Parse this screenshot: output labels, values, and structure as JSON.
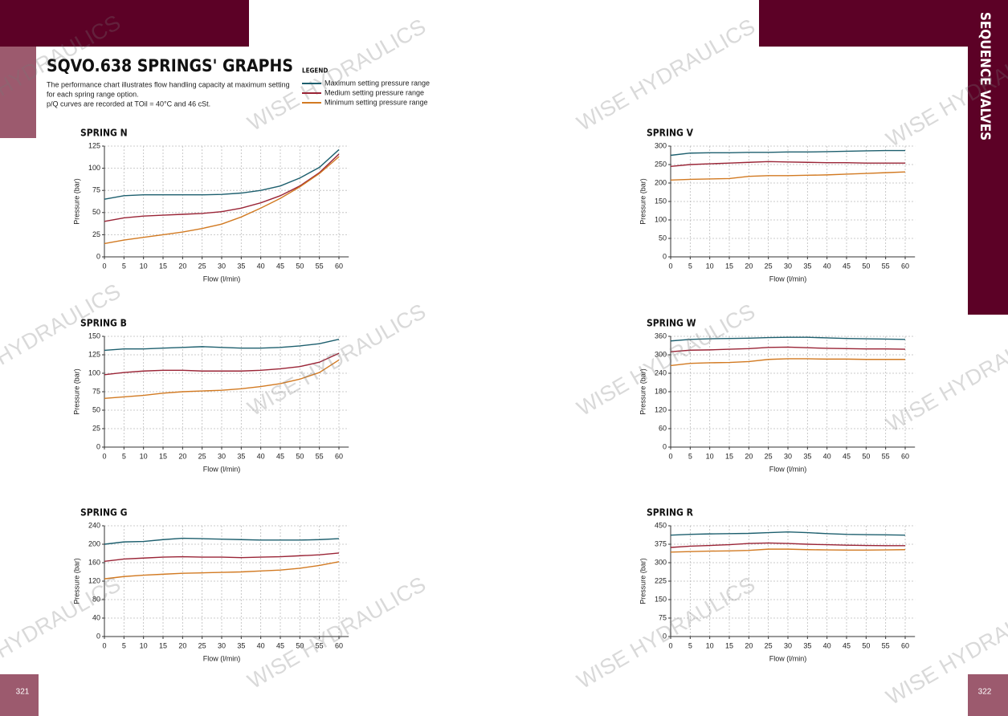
{
  "header": {
    "title": "SQVO.638 SPRINGS' GRAPHS",
    "description": [
      "The performance chart illustrates flow handling capacity at maximum setting",
      "for each spring range option.",
      "p/Q curves are recorded at TOil = 40°C and 46 cSt."
    ],
    "section": "SEQUENCE VALVES"
  },
  "legend": {
    "title": "LEGEND",
    "items": [
      {
        "label": "Maximum setting pressure range",
        "color": "#1d5f6e"
      },
      {
        "label": "Medium setting pressure range",
        "color": "#9a2436"
      },
      {
        "label": "Minimum setting pressure range",
        "color": "#d27a22"
      }
    ]
  },
  "watermark": "WISE HYDRAULICS",
  "page_numbers": [
    "321",
    "322"
  ],
  "chart_data": [
    {
      "type": "line",
      "title": "SPRING N",
      "x_label": "Flow (l/min)",
      "y_label": "Pressure (bar)",
      "grid": true,
      "x": [
        0,
        5,
        10,
        15,
        20,
        25,
        30,
        35,
        40,
        45,
        50,
        55,
        60
      ],
      "xlim": [
        0,
        62.5
      ],
      "xticks": [
        0,
        5,
        10,
        15,
        20,
        25,
        30,
        35,
        40,
        45,
        50,
        55,
        60
      ],
      "ylim": [
        0,
        125
      ],
      "yticks": [
        0,
        25,
        50,
        75,
        100,
        125
      ],
      "series": [
        {
          "color": "#1d5f6e",
          "values": [
            65,
            69,
            70,
            70,
            70,
            70,
            70.5,
            72,
            75,
            80,
            89,
            101,
            121
          ]
        },
        {
          "color": "#9a2436",
          "values": [
            40,
            44,
            46,
            47,
            48,
            49,
            51,
            55,
            61,
            69,
            80,
            95,
            116
          ]
        },
        {
          "color": "#d27a22",
          "values": [
            15,
            19,
            22,
            25,
            28,
            32,
            37,
            45,
            55,
            66,
            79,
            94,
            113
          ]
        }
      ]
    },
    {
      "type": "line",
      "title": "SPRING V",
      "x_label": "Flow (l/min)",
      "y_label": "Pressure (bar)",
      "grid": true,
      "x": [
        0,
        5,
        10,
        15,
        20,
        25,
        30,
        35,
        40,
        45,
        50,
        55,
        60
      ],
      "xlim": [
        0,
        62.5
      ],
      "xticks": [
        0,
        5,
        10,
        15,
        20,
        25,
        30,
        35,
        40,
        45,
        50,
        55,
        60
      ],
      "ylim": [
        0,
        300
      ],
      "yticks": [
        0,
        50,
        100,
        150,
        200,
        250,
        300
      ],
      "series": [
        {
          "color": "#1d5f6e",
          "values": [
            275,
            281,
            282,
            282,
            283,
            283,
            284,
            284,
            285,
            286,
            287,
            288,
            288
          ]
        },
        {
          "color": "#9a2436",
          "values": [
            245,
            250,
            252,
            254,
            256,
            258,
            257,
            256,
            255,
            255,
            254,
            254,
            254
          ]
        },
        {
          "color": "#d27a22",
          "values": [
            208,
            210,
            211,
            212,
            218,
            220,
            220,
            221,
            222,
            224,
            226,
            228,
            230
          ]
        }
      ]
    },
    {
      "type": "line",
      "title": "SPRING B",
      "x_label": "Flow (l/min)",
      "y_label": "Pressure (bar)",
      "grid": true,
      "x": [
        0,
        5,
        10,
        15,
        20,
        25,
        30,
        35,
        40,
        45,
        50,
        55,
        60
      ],
      "xlim": [
        0,
        62.5
      ],
      "xticks": [
        0,
        5,
        10,
        15,
        20,
        25,
        30,
        35,
        40,
        45,
        50,
        55,
        60
      ],
      "ylim": [
        0,
        150
      ],
      "yticks": [
        0,
        25,
        50,
        75,
        100,
        125,
        150
      ],
      "series": [
        {
          "color": "#1d5f6e",
          "values": [
            131,
            133,
            133,
            134,
            135,
            136,
            135,
            134,
            134,
            135,
            137,
            140,
            146
          ]
        },
        {
          "color": "#9a2436",
          "values": [
            98,
            101,
            103,
            104,
            104,
            103,
            103,
            103,
            104,
            106,
            109,
            115,
            127
          ]
        },
        {
          "color": "#d27a22",
          "values": [
            66,
            68,
            70,
            73,
            75,
            76,
            77,
            79,
            82,
            86,
            92,
            101,
            118
          ]
        }
      ]
    },
    {
      "type": "line",
      "title": "SPRING W",
      "x_label": "Flow (l/min)",
      "y_label": "Pressure (bar)",
      "grid": true,
      "x": [
        0,
        5,
        10,
        15,
        20,
        25,
        30,
        35,
        40,
        45,
        50,
        55,
        60
      ],
      "xlim": [
        0,
        62.5
      ],
      "xticks": [
        0,
        5,
        10,
        15,
        20,
        25,
        30,
        35,
        40,
        45,
        50,
        55,
        60
      ],
      "ylim": [
        0,
        360
      ],
      "yticks": [
        0,
        60,
        120,
        180,
        240,
        300,
        360
      ],
      "series": [
        {
          "color": "#1d5f6e",
          "values": [
            345,
            350,
            352,
            353,
            354,
            356,
            357,
            357,
            355,
            353,
            352,
            351,
            350
          ]
        },
        {
          "color": "#9a2436",
          "values": [
            310,
            315,
            316,
            318,
            320,
            324,
            325,
            323,
            321,
            320,
            319,
            319,
            318
          ]
        },
        {
          "color": "#d27a22",
          "values": [
            265,
            272,
            274,
            275,
            278,
            285,
            287,
            287,
            286,
            286,
            285,
            285,
            285
          ]
        }
      ]
    },
    {
      "type": "line",
      "title": "SPRING G",
      "x_label": "Flow (l/min)",
      "y_label": "Pressure (bar)",
      "grid": true,
      "x": [
        0,
        5,
        10,
        15,
        20,
        25,
        30,
        35,
        40,
        45,
        50,
        55,
        60
      ],
      "xlim": [
        0,
        62.5
      ],
      "xticks": [
        0,
        5,
        10,
        15,
        20,
        25,
        30,
        35,
        40,
        45,
        50,
        55,
        60
      ],
      "ylim": [
        0,
        240
      ],
      "yticks": [
        0,
        40,
        80,
        120,
        160,
        200,
        240
      ],
      "series": [
        {
          "color": "#1d5f6e",
          "values": [
            200,
            205,
            206,
            210,
            213,
            212,
            211,
            210,
            209,
            209,
            209,
            210,
            212
          ]
        },
        {
          "color": "#9a2436",
          "values": [
            163,
            168,
            170,
            172,
            173,
            172,
            172,
            171,
            172,
            173,
            175,
            177,
            181
          ]
        },
        {
          "color": "#d27a22",
          "values": [
            125,
            130,
            133,
            135,
            137,
            138,
            139,
            140,
            142,
            144,
            148,
            154,
            162
          ]
        }
      ]
    },
    {
      "type": "line",
      "title": "SPRING R",
      "x_label": "Flow (l/min)",
      "y_label": "Pressure (bar)",
      "grid": true,
      "x": [
        0,
        5,
        10,
        15,
        20,
        25,
        30,
        35,
        40,
        45,
        50,
        55,
        60
      ],
      "xlim": [
        0,
        62.5
      ],
      "xticks": [
        0,
        5,
        10,
        15,
        20,
        25,
        30,
        35,
        40,
        45,
        50,
        55,
        60
      ],
      "ylim": [
        0,
        450
      ],
      "yticks": [
        0,
        75,
        150,
        225,
        300,
        375,
        450
      ],
      "series": [
        {
          "color": "#1d5f6e",
          "values": [
            412,
            415,
            417,
            418,
            419,
            422,
            425,
            422,
            418,
            415,
            414,
            413,
            412
          ]
        },
        {
          "color": "#9a2436",
          "values": [
            362,
            367,
            370,
            373,
            378,
            380,
            378,
            375,
            373,
            371,
            370,
            369,
            369
          ]
        },
        {
          "color": "#d27a22",
          "values": [
            343,
            345,
            347,
            348,
            350,
            355,
            355,
            353,
            352,
            351,
            351,
            352,
            353
          ]
        }
      ]
    }
  ]
}
